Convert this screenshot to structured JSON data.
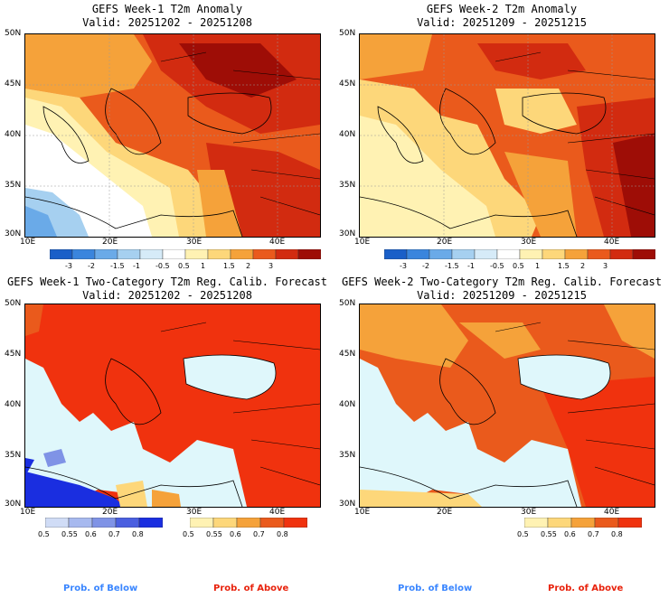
{
  "panels": [
    {
      "title_line1": "GEFS Week-1 T2m Anomaly",
      "title_line2": "Valid: 20251202 - 20251208"
    },
    {
      "title_line1": "GEFS Week-2 T2m Anomaly",
      "title_line2": "Valid: 20251209 - 20251215"
    },
    {
      "title_line1": "GEFS Week-1 Two-Category T2m Reg. Calib. Forecast",
      "title_line2": "Valid: 20251202 - 20251208"
    },
    {
      "title_line1": "GEFS Week-2 Two-Category T2m Reg. Calib. Forecast",
      "title_line2": "Valid: 20251209 - 20251215"
    }
  ],
  "axes": {
    "lat_labels": [
      "50N",
      "45N",
      "40N",
      "35N",
      "30N"
    ],
    "lon_labels": [
      "10E",
      "20E",
      "30E",
      "40E"
    ]
  },
  "anomaly_colorbar": {
    "ticks": [
      "-3",
      "-2",
      "-1.5",
      "-1",
      "-0.5",
      "0.5",
      "1",
      "1.5",
      "2",
      "3"
    ],
    "colors": [
      "#1a5fc8",
      "#3a85dd",
      "#6aaae8",
      "#a6d0f0",
      "#d6ebf8",
      "#ffffff",
      "#fff2b3",
      "#fdd77a",
      "#f5a23a",
      "#ea5a1c",
      "#d22b10",
      "#9e0d06"
    ]
  },
  "prob_below": {
    "label": "Prob. of Below",
    "ticks": [
      "0.5",
      "0.55",
      "0.6",
      "0.7",
      "0.8"
    ],
    "colors": [
      "#d0dcf6",
      "#a7b9ef",
      "#7f93e6",
      "#4a5fe0",
      "#1a2ee0"
    ]
  },
  "prob_above": {
    "label": "Prob. of Above",
    "ticks": [
      "0.5",
      "0.55",
      "0.6",
      "0.7",
      "0.8"
    ],
    "colors": [
      "#fff2b3",
      "#fdd77a",
      "#f5a23a",
      "#ea5a1c",
      "#f0320e"
    ]
  },
  "colors": {
    "below_label": "#3a86ff",
    "above_label": "#e8220c",
    "sea_prob": "#dff7fb"
  }
}
